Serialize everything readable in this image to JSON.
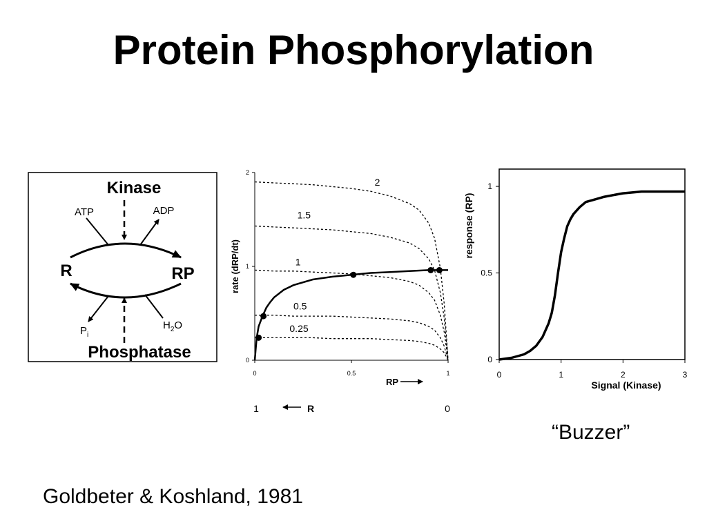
{
  "slide": {
    "title": "Protein Phosphorylation",
    "citation": "Goldbeter & Koshland, 1981",
    "caption": "“Buzzer”"
  },
  "cycle_diagram": {
    "kinase": "Kinase",
    "phosphatase": "Phosphatase",
    "substrate": "R",
    "product": "RP",
    "atp": "ATP",
    "adp": "ADP",
    "pi_base": "P",
    "pi_sub": "i",
    "water_base": "H",
    "water_sub": "2",
    "water_tail": "O"
  },
  "rate_plot_extra": {
    "r_axis_left": "1",
    "r_axis_label": "R",
    "r_axis_right": "0"
  },
  "chart_data": [
    {
      "type": "line",
      "title": "",
      "xlabel": "RP",
      "ylabel": "rate (dRP/dt)",
      "xlim": [
        0,
        1
      ],
      "ylim": [
        0,
        2
      ],
      "xticks": [
        "0",
        "0.5",
        "1"
      ],
      "yticks": [
        "0",
        "1",
        "2"
      ],
      "series": [
        {
          "name": "2",
          "style": "dotted",
          "x": [
            0,
            0.1,
            0.2,
            0.3,
            0.4,
            0.5,
            0.6,
            0.7,
            0.8,
            0.85,
            0.9,
            0.93,
            0.96,
            0.98,
            1.0
          ],
          "y": [
            1.9,
            1.89,
            1.88,
            1.87,
            1.85,
            1.83,
            1.8,
            1.75,
            1.67,
            1.6,
            1.46,
            1.3,
            0.98,
            0.6,
            0
          ]
        },
        {
          "name": "1.5",
          "style": "dotted",
          "x": [
            0,
            0.1,
            0.2,
            0.3,
            0.4,
            0.5,
            0.6,
            0.7,
            0.8,
            0.85,
            0.9,
            0.93,
            0.96,
            0.98,
            1.0
          ],
          "y": [
            1.43,
            1.42,
            1.41,
            1.4,
            1.39,
            1.37,
            1.35,
            1.31,
            1.25,
            1.19,
            1.08,
            0.96,
            0.72,
            0.45,
            0
          ]
        },
        {
          "name": "1",
          "style": "dotted",
          "x": [
            0,
            0.1,
            0.2,
            0.3,
            0.4,
            0.5,
            0.6,
            0.7,
            0.8,
            0.85,
            0.9,
            0.93,
            0.96,
            0.98,
            1.0
          ],
          "y": [
            0.96,
            0.95,
            0.95,
            0.94,
            0.93,
            0.92,
            0.9,
            0.88,
            0.84,
            0.8,
            0.72,
            0.64,
            0.48,
            0.3,
            0
          ]
        },
        {
          "name": "0.5",
          "style": "dotted",
          "x": [
            0,
            0.1,
            0.2,
            0.3,
            0.4,
            0.5,
            0.6,
            0.7,
            0.8,
            0.85,
            0.9,
            0.93,
            0.96,
            0.98,
            1.0
          ],
          "y": [
            0.48,
            0.48,
            0.47,
            0.47,
            0.47,
            0.46,
            0.45,
            0.44,
            0.42,
            0.4,
            0.36,
            0.32,
            0.24,
            0.15,
            0
          ]
        },
        {
          "name": "0.25",
          "style": "dotted",
          "x": [
            0,
            0.1,
            0.2,
            0.3,
            0.4,
            0.5,
            0.6,
            0.7,
            0.8,
            0.85,
            0.9,
            0.93,
            0.96,
            0.98,
            1.0
          ],
          "y": [
            0.24,
            0.24,
            0.24,
            0.24,
            0.23,
            0.23,
            0.23,
            0.22,
            0.21,
            0.2,
            0.18,
            0.16,
            0.12,
            0.08,
            0
          ]
        },
        {
          "name": "",
          "style": "solid",
          "x": [
            0,
            0.01,
            0.02,
            0.04,
            0.06,
            0.08,
            0.1,
            0.15,
            0.2,
            0.3,
            0.4,
            0.5,
            0.6,
            0.7,
            0.8,
            0.9,
            0.95,
            1.0
          ],
          "y": [
            0,
            0.24,
            0.36,
            0.47,
            0.56,
            0.62,
            0.67,
            0.75,
            0.8,
            0.86,
            0.89,
            0.91,
            0.93,
            0.94,
            0.95,
            0.96,
            0.96,
            0.96
          ]
        }
      ],
      "points": [
        {
          "x": 0.02,
          "y": 0.24
        },
        {
          "x": 0.045,
          "y": 0.47
        },
        {
          "x": 0.51,
          "y": 0.91
        },
        {
          "x": 0.91,
          "y": 0.96
        },
        {
          "x": 0.955,
          "y": 0.96
        }
      ]
    },
    {
      "type": "line",
      "title": "",
      "xlabel": "Signal (Kinase)",
      "ylabel": "response (RP)",
      "xlim": [
        0,
        3
      ],
      "ylim": [
        0,
        1.1
      ],
      "xticks": [
        "0",
        "1",
        "2",
        "3"
      ],
      "yticks": [
        "0",
        "0.5",
        "1"
      ],
      "series": [
        {
          "name": "",
          "x": [
            0,
            0.2,
            0.4,
            0.5,
            0.6,
            0.7,
            0.8,
            0.85,
            0.9,
            0.95,
            1.0,
            1.05,
            1.1,
            1.15,
            1.2,
            1.3,
            1.4,
            1.5,
            1.7,
            2.0,
            2.3,
            2.6,
            3.0
          ],
          "y": [
            0,
            0.01,
            0.03,
            0.05,
            0.08,
            0.13,
            0.21,
            0.27,
            0.37,
            0.5,
            0.62,
            0.7,
            0.77,
            0.81,
            0.84,
            0.88,
            0.91,
            0.92,
            0.94,
            0.96,
            0.97,
            0.97,
            0.97
          ]
        }
      ]
    }
  ]
}
